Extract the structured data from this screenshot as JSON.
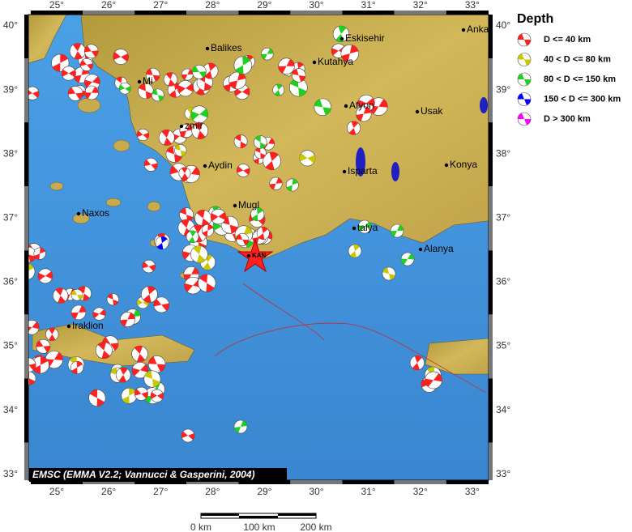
{
  "map": {
    "lon_ticks": [
      "25°",
      "26°",
      "27°",
      "28°",
      "29°",
      "30°",
      "31°",
      "32°",
      "33°"
    ],
    "lat_ticks": [
      "40°",
      "39°",
      "38°",
      "37°",
      "36°",
      "35°",
      "34°",
      "33°"
    ],
    "cities": [
      "Anka",
      "Eskisehir",
      "Balikes",
      "Kutahya",
      "Mi",
      "Afyon",
      "Usak",
      "zmir",
      "Aydin",
      "Konya",
      "Isparta",
      "Mugl",
      "Naxos",
      "talya",
      "Alanya",
      "KAN",
      "Iraklion"
    ],
    "credit": "EMSC (EMMA V2.2; Vannucci & Gasperini, 2004)",
    "scale_labels": [
      "0 km",
      "100 km",
      "200 km"
    ],
    "legend": {
      "title": "Depth",
      "items": [
        "D <= 40 km",
        "40 < D <= 80 km",
        "80 < D <= 150 km",
        "150 < D <= 300 km",
        "D > 300 km"
      ]
    }
  }
}
